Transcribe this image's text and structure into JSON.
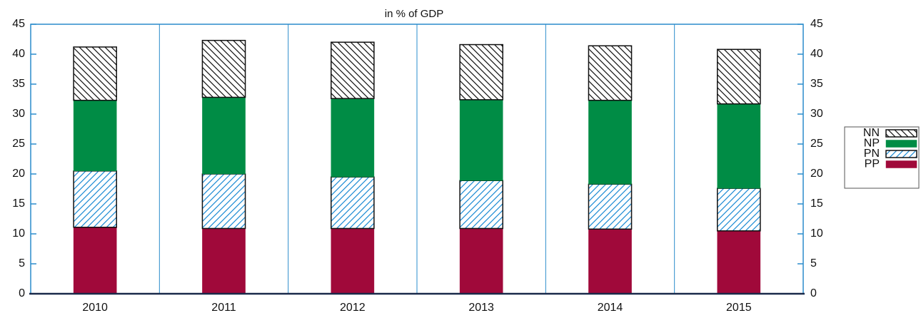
{
  "chart_data": {
    "type": "stacked-bar",
    "title": "in % of GDP",
    "categories": [
      "2010",
      "2011",
      "2012",
      "2013",
      "2014",
      "2015"
    ],
    "series": [
      {
        "name": "PP",
        "color": "#a0093a",
        "pattern": "solid",
        "values": [
          11.1,
          10.9,
          10.9,
          10.9,
          10.8,
          10.5
        ]
      },
      {
        "name": "PN",
        "color": "#1a8ad4",
        "pattern": "hatch-forward",
        "values": [
          9.4,
          9.1,
          8.6,
          8.0,
          7.5,
          7.1
        ]
      },
      {
        "name": "NP",
        "color": "#008c45",
        "pattern": "solid",
        "values": [
          11.8,
          12.8,
          13.1,
          13.5,
          14.0,
          14.1
        ]
      },
      {
        "name": "NN",
        "color": "#111111",
        "pattern": "hatch-backward",
        "values": [
          8.9,
          9.5,
          9.4,
          9.2,
          9.1,
          9.1
        ]
      }
    ],
    "ylim": [
      0,
      45
    ],
    "yticks": [
      0,
      5,
      10,
      15,
      20,
      25,
      30,
      35,
      40,
      45
    ],
    "y2lim": [
      0,
      45
    ],
    "y2ticks": [
      0,
      5,
      10,
      15,
      20,
      25,
      30,
      35,
      40,
      45
    ],
    "legend": "right"
  }
}
